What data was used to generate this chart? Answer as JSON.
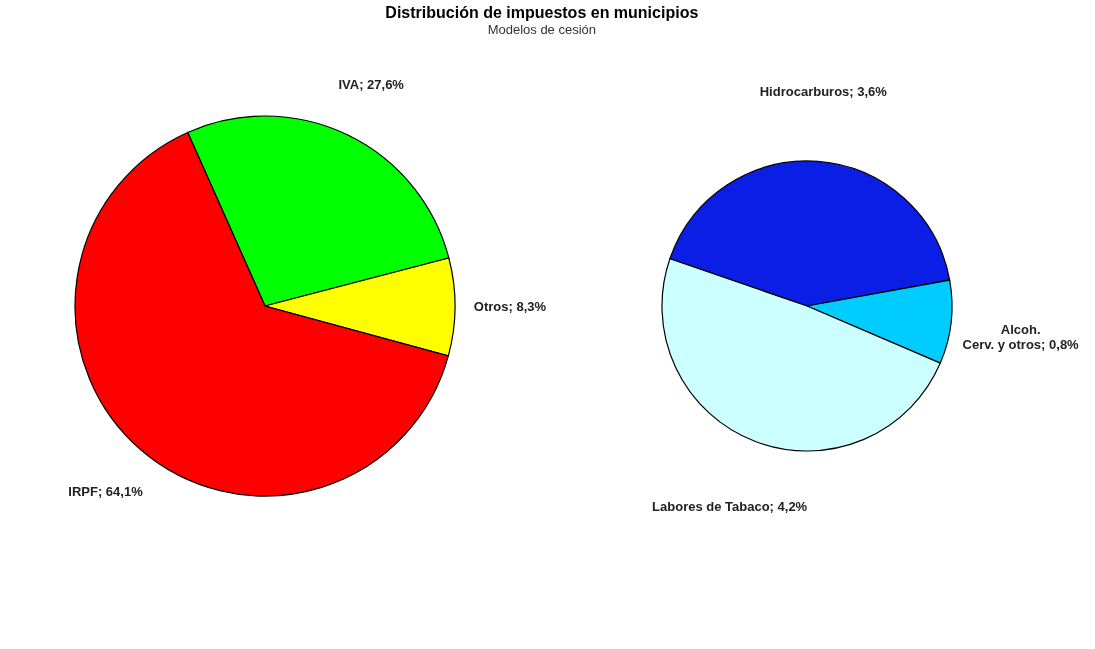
{
  "chart_data": [
    {
      "type": "pie",
      "title": "Distribución de impuestos en municipios",
      "subtitle": "Modelos de cesión",
      "categories": [
        "IVA",
        "Otros",
        "IRPF"
      ],
      "values": [
        27.6,
        8.3,
        64.1
      ],
      "value_labels": [
        "27,6%",
        "8,3%",
        "64,1%"
      ],
      "colors": [
        "#00ff00",
        "#ffff00",
        "#ff0000"
      ],
      "legend": false
    },
    {
      "type": "pie",
      "categories": [
        "Hidrocarburos",
        "Alcoh.\nCerv. y otros",
        "Labores de Tabaco"
      ],
      "values": [
        3.6,
        0.8,
        4.2
      ],
      "value_labels": [
        "3,6%",
        "0,8%",
        "4,2%"
      ],
      "colors": [
        "#0a1ee6",
        "#00ccff",
        "#ccffff"
      ],
      "legend": false
    }
  ]
}
